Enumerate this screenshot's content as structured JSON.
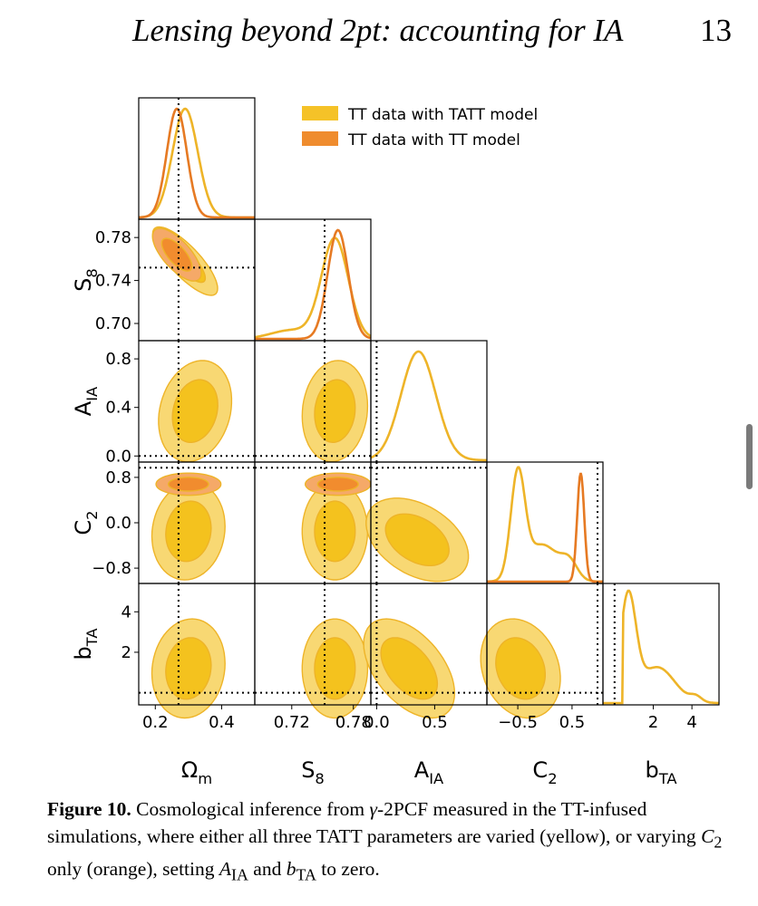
{
  "header": {
    "title": "Lensing beyond 2pt: accounting for IA",
    "page_number": "13"
  },
  "chart_data": {
    "type": "corner",
    "parameters": [
      {
        "symbol": "Ω",
        "subscript": "m",
        "range": [
          0.15,
          0.5
        ],
        "truth": 0.27,
        "ticks": [
          "0.2",
          "0.4"
        ]
      },
      {
        "symbol": "S",
        "subscript": "8",
        "range": [
          0.684,
          0.797
        ],
        "truth": 0.752,
        "ticks": [
          "0.72",
          "0.78"
        ]
      },
      {
        "symbol": "A",
        "subscript": "IA",
        "range": [
          -0.05,
          0.95
        ],
        "truth": 0.0,
        "ticks": [
          "0.0",
          "0.5"
        ]
      },
      {
        "symbol": "C",
        "subscript": "2",
        "range": [
          -1.07,
          1.07
        ],
        "truth": 0.97,
        "ticks": [
          "−0.5",
          "0.5"
        ]
      },
      {
        "symbol": "b",
        "subscript": "TA",
        "range": [
          -0.6,
          5.4
        ],
        "truth": 0.0,
        "ticks": [
          "2",
          "4"
        ]
      }
    ],
    "y_axis_ticks": {
      "S8": [
        "0.78",
        "0.74",
        "0.70"
      ],
      "AIA": [
        "0.8",
        "0.4",
        "0.0"
      ],
      "C2": [
        "0.8",
        "0.0",
        "−0.8"
      ],
      "bTA": [
        "4",
        "2"
      ]
    },
    "legend": {
      "placement": "top-right",
      "entries": [
        {
          "label": "TT data with TATT model",
          "color": "#f5c228"
        },
        {
          "label": "TT data with TT model",
          "color": "#ef8c2e"
        }
      ]
    },
    "series_colors": {
      "tatt_line": "#eeb428",
      "tatt_fill_outer": "#f8d873",
      "tatt_fill_inner": "#f4c21e",
      "tt_line": "#e67a23",
      "tt_fill_outer": "#f5a968",
      "tt_fill_inner": "#f18c2e"
    },
    "marginals": {
      "Om": {
        "tatt": {
          "peak": 0.29,
          "sigma": 0.038
        },
        "tt": {
          "peak": 0.265,
          "sigma": 0.03
        }
      },
      "S8": {
        "tatt": {
          "peak": 0.762,
          "sigma": 0.013
        },
        "tt": {
          "peak": 0.765,
          "sigma": 0.01
        }
      },
      "AIA": {
        "tatt": {
          "peak": 0.36,
          "sigma": 0.15
        }
      },
      "C2": {
        "tatt": {
          "peak": -0.5,
          "sigma": 0.13,
          "tail": true
        },
        "tt": {
          "peak": 0.66,
          "sigma": 0.065
        }
      },
      "bTA": {
        "tatt": {
          "peak": 0.7,
          "sigma": 0.4,
          "tail": true
        }
      }
    }
  },
  "caption": {
    "label": "Figure 10.",
    "text1": " Cosmological inference from ",
    "gamma": "γ",
    "text2": "-2PCF measured in the TT-infused simulations, where either all three TATT parameters are varied (yellow), or varying ",
    "c2_main": "C",
    "c2_sub": "2",
    "text3": " only (orange), setting ",
    "aia_main": "A",
    "aia_sub": "IA",
    "text4": " and ",
    "bta_main": "b",
    "bta_sub": "TA",
    "text5": " to zero."
  }
}
